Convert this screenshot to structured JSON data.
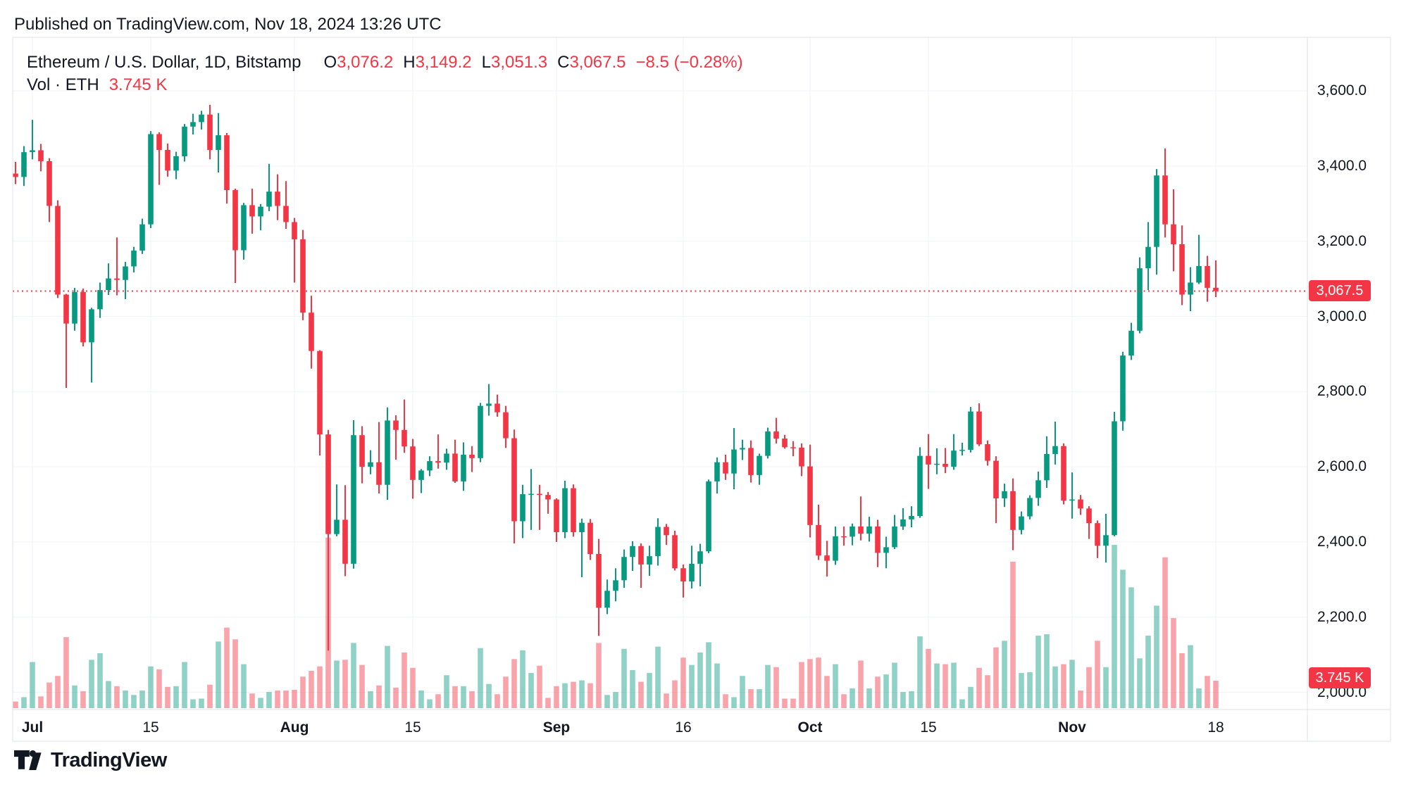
{
  "header": {
    "published_line": "Published on TradingView.com, Nov 18, 2024 13:26 UTC"
  },
  "legend": {
    "symbol_title": "Ethereum / U.S. Dollar, 1D, Bitstamp",
    "ohlc": [
      {
        "label": "O",
        "value": "3,076.2"
      },
      {
        "label": "H",
        "value": "3,149.2"
      },
      {
        "label": "L",
        "value": "3,051.3"
      },
      {
        "label": "C",
        "value": "3,067.5"
      }
    ],
    "change": "−8.5 (−0.28%)",
    "vol_label": "Vol · ETH",
    "vol_value": "3.745 K"
  },
  "price_line": {
    "value": 3067.5,
    "badge": "3,067.5"
  },
  "volume_badge": "3.745 K",
  "y_axis": {
    "labels": [
      {
        "text": "3,600.0",
        "price": 3600
      },
      {
        "text": "3,400.0",
        "price": 3400
      },
      {
        "text": "3,200.0",
        "price": 3200
      },
      {
        "text": "3,000.0",
        "price": 3000
      },
      {
        "text": "2,800.0",
        "price": 2800
      },
      {
        "text": "2,600.0",
        "price": 2600
      },
      {
        "text": "2,400.0",
        "price": 2400
      },
      {
        "text": "2,200.0",
        "price": 2200
      },
      {
        "text": "2,000.0",
        "price": 2000
      }
    ]
  },
  "x_axis": {
    "ticks": [
      {
        "label": "Jul",
        "index": 2,
        "bold": true
      },
      {
        "label": "15",
        "index": 16,
        "bold": false
      },
      {
        "label": "Aug",
        "index": 33,
        "bold": true
      },
      {
        "label": "15",
        "index": 47,
        "bold": false
      },
      {
        "label": "Sep",
        "index": 64,
        "bold": true
      },
      {
        "label": "16",
        "index": 79,
        "bold": false
      },
      {
        "label": "Oct",
        "index": 94,
        "bold": true
      },
      {
        "label": "15",
        "index": 108,
        "bold": false
      },
      {
        "label": "Nov",
        "index": 125,
        "bold": true
      },
      {
        "label": "18",
        "index": 142,
        "bold": false
      }
    ]
  },
  "colors": {
    "up": "#089981",
    "down": "#F23645",
    "vol_up": "rgba(8,153,129,0.45)",
    "vol_down": "rgba(242,54,69,0.45)",
    "grid": "#F0F3FA",
    "frame": "#E0E3EB",
    "accent_red": "#F23645",
    "text": "#131722",
    "background": "#FFFFFF"
  },
  "watermark": {
    "brand": "TradingView"
  },
  "chart_data": {
    "type": "candlestick",
    "title": "Ethereum / U.S. Dollar, 1D, Bitstamp",
    "symbol": "ETHUSD",
    "exchange": "Bitstamp",
    "timeframe": "1D",
    "start_date": "2024-06-29",
    "end_date": "2024-11-18",
    "interval_days": 1,
    "ylim": [
      2000,
      3600
    ],
    "y_tick_step": 200,
    "grid": true,
    "last_price": 3067.5,
    "last_change": "−8.5 (−0.28%)",
    "last_volume_k": 3.745,
    "current_bar": {
      "open": 3076.2,
      "high": 3149.2,
      "low": 3051.3,
      "close": 3067.5
    },
    "ohlc": [
      [
        3380,
        3411,
        3352,
        3371
      ],
      [
        3371,
        3453,
        3347,
        3437
      ],
      [
        3437,
        3523,
        3418,
        3442
      ],
      [
        3442,
        3459,
        3386,
        3413
      ],
      [
        3413,
        3421,
        3251,
        3294
      ],
      [
        3294,
        3309,
        3049,
        3058
      ],
      [
        3058,
        3060,
        2810,
        2981
      ],
      [
        2981,
        3076,
        2962,
        3065
      ],
      [
        3065,
        3074,
        2920,
        2931
      ],
      [
        2931,
        3023,
        2824,
        3019
      ],
      [
        3019,
        3090,
        2996,
        3070
      ],
      [
        3070,
        3141,
        3057,
        3101
      ],
      [
        3101,
        3210,
        3056,
        3097
      ],
      [
        3097,
        3145,
        3046,
        3133
      ],
      [
        3133,
        3185,
        3117,
        3175
      ],
      [
        3175,
        3260,
        3166,
        3245
      ],
      [
        3245,
        3493,
        3235,
        3485
      ],
      [
        3485,
        3490,
        3350,
        3443
      ],
      [
        3443,
        3460,
        3372,
        3388
      ],
      [
        3388,
        3438,
        3365,
        3426
      ],
      [
        3426,
        3512,
        3412,
        3505
      ],
      [
        3505,
        3539,
        3484,
        3517
      ],
      [
        3517,
        3547,
        3497,
        3537
      ],
      [
        3537,
        3563,
        3418,
        3443
      ],
      [
        3443,
        3541,
        3383,
        3482
      ],
      [
        3482,
        3488,
        3300,
        3336
      ],
      [
        3336,
        3340,
        3089,
        3176
      ],
      [
        3176,
        3302,
        3151,
        3296
      ],
      [
        3296,
        3340,
        3220,
        3266
      ],
      [
        3266,
        3299,
        3229,
        3292
      ],
      [
        3292,
        3406,
        3280,
        3332
      ],
      [
        3332,
        3378,
        3256,
        3294
      ],
      [
        3294,
        3360,
        3233,
        3251
      ],
      [
        3251,
        3262,
        3090,
        3205
      ],
      [
        3205,
        3230,
        2990,
        3010
      ],
      [
        3010,
        3055,
        2861,
        2908
      ],
      [
        2908,
        2910,
        2630,
        2686
      ],
      [
        2686,
        2698,
        2111,
        2421
      ],
      [
        2421,
        2553,
        2415,
        2459
      ],
      [
        2459,
        2551,
        2309,
        2342
      ],
      [
        2342,
        2724,
        2329,
        2684
      ],
      [
        2684,
        2708,
        2556,
        2600
      ],
      [
        2600,
        2644,
        2580,
        2612
      ],
      [
        2612,
        2719,
        2529,
        2552
      ],
      [
        2552,
        2758,
        2512,
        2723
      ],
      [
        2723,
        2737,
        2619,
        2698
      ],
      [
        2698,
        2779,
        2637,
        2654
      ],
      [
        2654,
        2674,
        2515,
        2565
      ],
      [
        2565,
        2594,
        2530,
        2590
      ],
      [
        2590,
        2628,
        2575,
        2615
      ],
      [
        2615,
        2686,
        2595,
        2611
      ],
      [
        2611,
        2648,
        2592,
        2635
      ],
      [
        2635,
        2672,
        2557,
        2561
      ],
      [
        2561,
        2665,
        2536,
        2632
      ],
      [
        2632,
        2655,
        2586,
        2623
      ],
      [
        2623,
        2770,
        2612,
        2762
      ],
      [
        2762,
        2820,
        2736,
        2768
      ],
      [
        2768,
        2792,
        2733,
        2745
      ],
      [
        2745,
        2762,
        2650,
        2676
      ],
      [
        2676,
        2699,
        2396,
        2455
      ],
      [
        2455,
        2552,
        2410,
        2527
      ],
      [
        2527,
        2594,
        2432,
        2528
      ],
      [
        2528,
        2552,
        2432,
        2525
      ],
      [
        2525,
        2533,
        2475,
        2513
      ],
      [
        2513,
        2516,
        2400,
        2426
      ],
      [
        2426,
        2563,
        2410,
        2543
      ],
      [
        2543,
        2553,
        2414,
        2426
      ],
      [
        2426,
        2462,
        2306,
        2451
      ],
      [
        2451,
        2461,
        2352,
        2368
      ],
      [
        2368,
        2408,
        2150,
        2225
      ],
      [
        2225,
        2300,
        2208,
        2270
      ],
      [
        2270,
        2330,
        2242,
        2298
      ],
      [
        2298,
        2380,
        2278,
        2360
      ],
      [
        2360,
        2402,
        2323,
        2389
      ],
      [
        2389,
        2396,
        2278,
        2340
      ],
      [
        2340,
        2390,
        2310,
        2362
      ],
      [
        2362,
        2463,
        2337,
        2440
      ],
      [
        2440,
        2448,
        2392,
        2418
      ],
      [
        2418,
        2430,
        2324,
        2330
      ],
      [
        2330,
        2340,
        2252,
        2295
      ],
      [
        2295,
        2390,
        2276,
        2342
      ],
      [
        2342,
        2395,
        2282,
        2375
      ],
      [
        2375,
        2566,
        2370,
        2561
      ],
      [
        2561,
        2625,
        2529,
        2612
      ],
      [
        2612,
        2632,
        2565,
        2582
      ],
      [
        2582,
        2703,
        2540,
        2646
      ],
      [
        2646,
        2672,
        2618,
        2650
      ],
      [
        2650,
        2670,
        2558,
        2578
      ],
      [
        2578,
        2635,
        2552,
        2629
      ],
      [
        2629,
        2704,
        2622,
        2694
      ],
      [
        2694,
        2730,
        2662,
        2675
      ],
      [
        2675,
        2685,
        2648,
        2652
      ],
      [
        2652,
        2668,
        2628,
        2651
      ],
      [
        2651,
        2662,
        2575,
        2601
      ],
      [
        2601,
        2659,
        2412,
        2445
      ],
      [
        2445,
        2499,
        2352,
        2364
      ],
      [
        2364,
        2403,
        2308,
        2350
      ],
      [
        2350,
        2441,
        2339,
        2415
      ],
      [
        2415,
        2441,
        2390,
        2414
      ],
      [
        2414,
        2449,
        2391,
        2441
      ],
      [
        2441,
        2521,
        2404,
        2422
      ],
      [
        2422,
        2467,
        2401,
        2441
      ],
      [
        2441,
        2459,
        2333,
        2371
      ],
      [
        2371,
        2414,
        2330,
        2386
      ],
      [
        2386,
        2472,
        2381,
        2441
      ],
      [
        2441,
        2490,
        2432,
        2460
      ],
      [
        2460,
        2495,
        2439,
        2469
      ],
      [
        2469,
        2652,
        2464,
        2629
      ],
      [
        2629,
        2687,
        2541,
        2606
      ],
      [
        2606,
        2649,
        2580,
        2608
      ],
      [
        2608,
        2650,
        2583,
        2600
      ],
      [
        2600,
        2687,
        2592,
        2643
      ],
      [
        2643,
        2664,
        2630,
        2645
      ],
      [
        2645,
        2759,
        2638,
        2747
      ],
      [
        2747,
        2769,
        2655,
        2660
      ],
      [
        2660,
        2670,
        2603,
        2616
      ],
      [
        2616,
        2628,
        2450,
        2516
      ],
      [
        2516,
        2555,
        2493,
        2535
      ],
      [
        2535,
        2569,
        2378,
        2432
      ],
      [
        2432,
        2481,
        2420,
        2468
      ],
      [
        2468,
        2524,
        2460,
        2517
      ],
      [
        2517,
        2587,
        2496,
        2564
      ],
      [
        2564,
        2681,
        2544,
        2634
      ],
      [
        2634,
        2720,
        2606,
        2655
      ],
      [
        2655,
        2662,
        2500,
        2510
      ],
      [
        2510,
        2585,
        2462,
        2513
      ],
      [
        2513,
        2525,
        2472,
        2489
      ],
      [
        2489,
        2495,
        2408,
        2450
      ],
      [
        2450,
        2457,
        2357,
        2390
      ],
      [
        2390,
        2475,
        2345,
        2418
      ],
      [
        2418,
        2746,
        2415,
        2721
      ],
      [
        2721,
        2906,
        2696,
        2896
      ],
      [
        2896,
        2983,
        2884,
        2962
      ],
      [
        2962,
        3157,
        2955,
        3128
      ],
      [
        3128,
        3251,
        3070,
        3185
      ],
      [
        3185,
        3392,
        3111,
        3375
      ],
      [
        3375,
        3447,
        3210,
        3245
      ],
      [
        3245,
        3338,
        3120,
        3192
      ],
      [
        3192,
        3242,
        3030,
        3058
      ],
      [
        3058,
        3131,
        3014,
        3090
      ],
      [
        3090,
        3217,
        3086,
        3134
      ],
      [
        3134,
        3161,
        3039,
        3076
      ],
      [
        3076.2,
        3149.2,
        3051.3,
        3067.5
      ]
    ],
    "volume_k": [
      0.9,
      1.5,
      6.3,
      1.6,
      3.5,
      4.4,
      9.7,
      3.1,
      2.3,
      6.6,
      7.5,
      3.7,
      3.0,
      2.4,
      1.8,
      2.4,
      5.7,
      5.3,
      2.9,
      3.0,
      6.3,
      1.2,
      1.3,
      3.2,
      9.1,
      11.0,
      9.4,
      6.0,
      2.0,
      1.4,
      2.2,
      2.4,
      2.4,
      2.5,
      4.3,
      5.1,
      5.7,
      23.3,
      6.5,
      6.6,
      8.9,
      5.9,
      2.3,
      3.1,
      8.5,
      2.8,
      7.6,
      5.5,
      2.4,
      1.2,
      1.9,
      4.5,
      3.0,
      3.0,
      2.3,
      8.2,
      3.3,
      1.9,
      4.3,
      6.7,
      7.9,
      4.8,
      5.8,
      1.4,
      3.0,
      3.4,
      3.6,
      3.8,
      3.4,
      8.9,
      1.8,
      2.2,
      8.1,
      5.2,
      3.6,
      4.8,
      8.4,
      2.0,
      3.8,
      6.9,
      5.9,
      7.6,
      9.0,
      6.1,
      1.9,
      1.5,
      4.4,
      2.6,
      2.6,
      5.9,
      5.6,
      1.3,
      1.3,
      6.3,
      6.7,
      6.9,
      4.4,
      6.0,
      1.9,
      2.7,
      6.5,
      2.7,
      4.3,
      4.6,
      6.2,
      2.2,
      2.3,
      9.8,
      8.1,
      6.1,
      6.0,
      6.2,
      1.2,
      2.9,
      5.5,
      4.5,
      8.3,
      9.2,
      20.0,
      4.8,
      4.9,
      9.9,
      10.1,
      5.7,
      6.0,
      6.6,
      2.4,
      5.6,
      9.2,
      5.6,
      22.3,
      18.9,
      16.5,
      6.8,
      9.9,
      14.0,
      20.6,
      12.3,
      7.5,
      8.6,
      2.7,
      4.4,
      3.745
    ],
    "legend_position": "top-left-inside",
    "volume_pane": "overlay-bottom"
  }
}
